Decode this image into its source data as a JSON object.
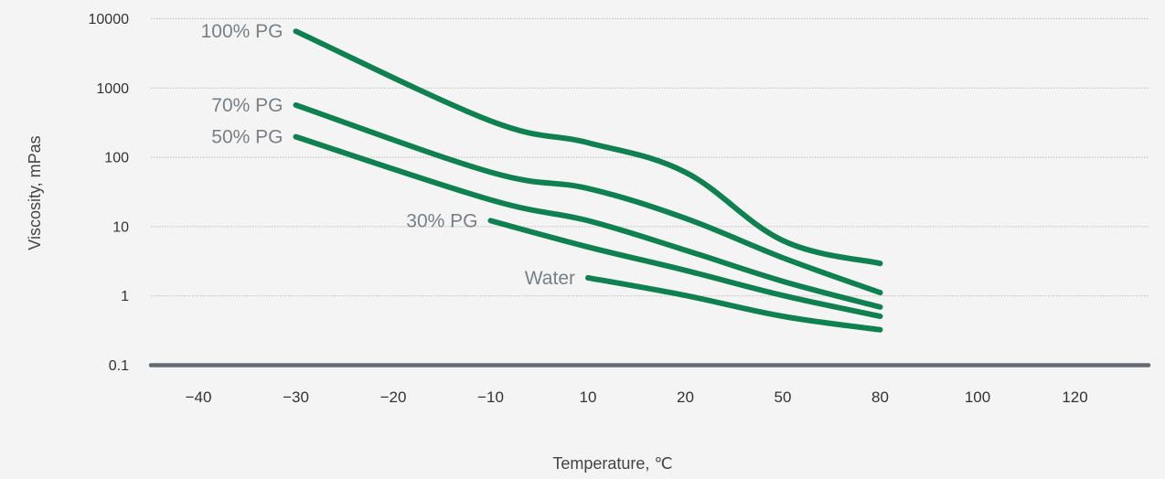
{
  "chart_data": {
    "type": "line",
    "xlabel": "Temperature, ℃",
    "ylabel": "Viscosity, mPas",
    "y_scale": "log",
    "ylim": [
      0.1,
      10000
    ],
    "y_ticks": [
      "10000",
      "1000",
      "100",
      "10",
      "1",
      "0.1"
    ],
    "x_ticks": [
      "−40",
      "−30",
      "−20",
      "−10",
      "10",
      "20",
      "50",
      "80",
      "100",
      "120"
    ],
    "grid": "horizontal",
    "series": [
      {
        "name": "100% PG",
        "points": [
          [
            "−30",
            6500
          ],
          [
            "−10",
            330
          ],
          [
            "10",
            160
          ],
          [
            "20",
            60
          ],
          [
            "50",
            6.2
          ],
          [
            "80",
            2.9
          ]
        ]
      },
      {
        "name": "70% PG",
        "points": [
          [
            "−30",
            560
          ],
          [
            "−10",
            60
          ],
          [
            "10",
            35
          ],
          [
            "20",
            13
          ],
          [
            "50",
            3.5
          ],
          [
            "80",
            1.1
          ]
        ]
      },
      {
        "name": "50% PG",
        "points": [
          [
            "−30",
            195
          ],
          [
            "−10",
            24
          ],
          [
            "10",
            12
          ],
          [
            "20",
            4.5
          ],
          [
            "50",
            1.6
          ],
          [
            "80",
            0.68
          ]
        ]
      },
      {
        "name": "30% PG",
        "points": [
          [
            "−10",
            12
          ],
          [
            "10",
            5.0
          ],
          [
            "20",
            2.3
          ],
          [
            "50",
            1.0
          ],
          [
            "80",
            0.5
          ]
        ]
      },
      {
        "name": "Water",
        "points": [
          [
            "10",
            1.8
          ],
          [
            "20",
            1.0
          ],
          [
            "50",
            0.5
          ],
          [
            "80",
            0.32
          ]
        ]
      }
    ]
  }
}
